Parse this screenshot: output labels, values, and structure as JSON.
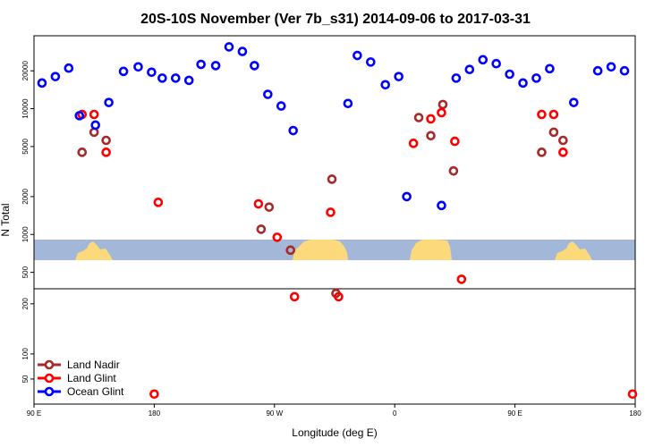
{
  "chart_data": {
    "type": "scatter",
    "title": "20S-10S November (Ver 7b_s31)   2014-09-06 to 2017-03-31",
    "xlabel": "Longitude (deg E)",
    "ylabel": "N Total",
    "x_ticks": [
      {
        "value": 90,
        "label": "90 E"
      },
      {
        "value": 180,
        "label": "180"
      },
      {
        "value": 270,
        "label": "90 W"
      },
      {
        "value": 360,
        "label": "0"
      },
      {
        "value": 450,
        "label": "90 E"
      },
      {
        "value": 540,
        "label": "180"
      }
    ],
    "xlim": [
      90,
      540
    ],
    "upper_panel": {
      "scale": "log",
      "ylim": [
        370,
        38000
      ],
      "y_ticks": [
        500,
        1000,
        2000,
        5000,
        10000,
        20000
      ]
    },
    "lower_panel": {
      "scale": "linear",
      "ylim": [
        0,
        230
      ],
      "y_ticks": [
        50,
        100,
        200
      ]
    },
    "series": [
      {
        "name": "Land Nadir",
        "color": "#a52a2a",
        "upper": [
          [
            126,
            4500
          ],
          [
            135,
            6500
          ],
          [
            144,
            5600
          ],
          [
            260,
            1100
          ],
          [
            266,
            1650
          ],
          [
            282,
            750
          ],
          [
            313,
            2750
          ],
          [
            316,
            340
          ],
          [
            378,
            8500
          ],
          [
            387,
            6100
          ],
          [
            396,
            10800
          ],
          [
            404,
            3200
          ],
          [
            470,
            4500
          ],
          [
            479,
            6500
          ],
          [
            486,
            5600
          ]
        ],
        "lower": []
      },
      {
        "name": "Land Glint",
        "color": "#ff0000",
        "upper": [
          [
            126,
            9000
          ],
          [
            135,
            9000
          ],
          [
            144,
            4500
          ],
          [
            183,
            1800
          ],
          [
            258,
            1750
          ],
          [
            272,
            950
          ],
          [
            285,
            320
          ],
          [
            312,
            1500
          ],
          [
            318,
            320
          ],
          [
            374,
            5300
          ],
          [
            387,
            8300
          ],
          [
            395,
            9300
          ],
          [
            405,
            5500
          ],
          [
            410,
            440
          ],
          [
            470,
            9000
          ],
          [
            479,
            9000
          ],
          [
            486,
            4500
          ]
        ],
        "lower": [
          [
            180,
            20
          ],
          [
            538,
            20
          ]
        ]
      },
      {
        "name": "Ocean Glint",
        "color": "#0000ff",
        "upper": [
          [
            96,
            16000
          ],
          [
            106,
            18000
          ],
          [
            116,
            21000
          ],
          [
            124,
            8800
          ],
          [
            136,
            7400
          ],
          [
            146,
            11200
          ],
          [
            157,
            19800
          ],
          [
            168,
            21500
          ],
          [
            178,
            19500
          ],
          [
            186,
            17500
          ],
          [
            196,
            17500
          ],
          [
            206,
            16800
          ],
          [
            215,
            22500
          ],
          [
            226,
            22000
          ],
          [
            236,
            31000
          ],
          [
            246,
            28500
          ],
          [
            255,
            22000
          ],
          [
            265,
            13000
          ],
          [
            275,
            10500
          ],
          [
            284,
            6700
          ],
          [
            325,
            11000
          ],
          [
            332,
            26500
          ],
          [
            342,
            23500
          ],
          [
            353,
            15500
          ],
          [
            363,
            18000
          ],
          [
            369,
            2000
          ],
          [
            395,
            1700
          ],
          [
            406,
            17500
          ],
          [
            416,
            20500
          ],
          [
            426,
            24500
          ],
          [
            436,
            22800
          ],
          [
            446,
            18800
          ],
          [
            456,
            16000
          ],
          [
            466,
            17500
          ],
          [
            476,
            20800
          ],
          [
            494,
            11200
          ],
          [
            512,
            20000
          ],
          [
            522,
            21500
          ],
          [
            532,
            20000
          ]
        ],
        "lower": []
      }
    ],
    "legend_position": "bottom-left",
    "grid": false,
    "land_mask": {
      "ocean_color": "#a3b8d8",
      "land_color": "#fcd97a"
    }
  }
}
